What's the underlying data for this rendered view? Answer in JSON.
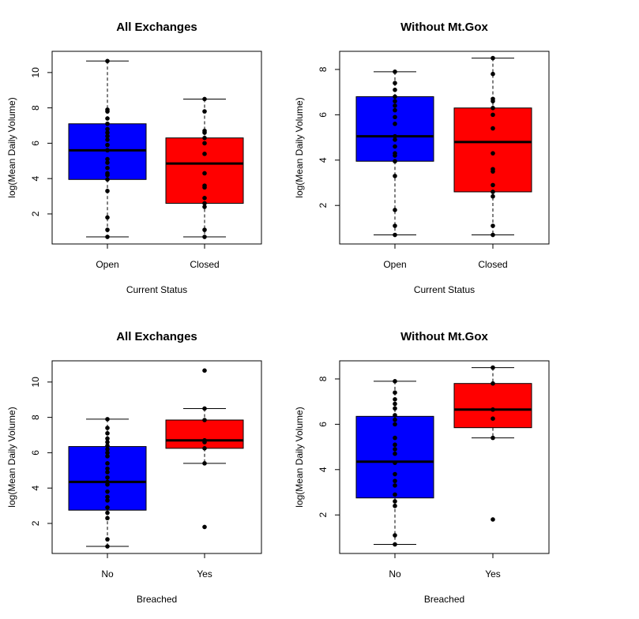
{
  "chart_data": [
    {
      "type": "box",
      "title": "All Exchanges",
      "xlabel": "Current Status",
      "ylabel": "log(Mean Daily Volume)",
      "ylim": [
        0.3,
        11.2
      ],
      "yticks": [
        2,
        4,
        6,
        8,
        10
      ],
      "categories": [
        "Open",
        "Closed"
      ],
      "boxes": [
        {
          "category": "Open",
          "color": "#0000ff",
          "whisker_low": 0.7,
          "q1": 3.95,
          "median": 5.6,
          "q3": 7.1,
          "whisker_high": 10.65,
          "points": [
            0.7,
            1.1,
            1.8,
            3.3,
            3.95,
            4.2,
            4.3,
            4.6,
            4.9,
            5.1,
            5.6,
            5.9,
            6.2,
            6.4,
            6.6,
            6.8,
            7.1,
            7.4,
            7.8,
            7.9,
            10.65
          ]
        },
        {
          "category": "Closed",
          "color": "#ff0000",
          "whisker_low": 0.7,
          "q1": 2.6,
          "median": 4.85,
          "q3": 6.3,
          "whisker_high": 8.5,
          "points": [
            0.7,
            1.1,
            2.4,
            2.6,
            2.9,
            3.5,
            3.6,
            4.3,
            5.4,
            6.0,
            6.3,
            6.6,
            6.7,
            7.8,
            8.5
          ]
        }
      ]
    },
    {
      "type": "box",
      "title": "Without Mt.Gox",
      "xlabel": "Current Status",
      "ylabel": "log(Mean Daily Volume)",
      "ylim": [
        0.3,
        8.8
      ],
      "yticks": [
        2,
        4,
        6,
        8
      ],
      "categories": [
        "Open",
        "Closed"
      ],
      "boxes": [
        {
          "category": "Open",
          "color": "#0000ff",
          "whisker_low": 0.7,
          "q1": 3.95,
          "median": 5.05,
          "q3": 6.8,
          "whisker_high": 7.9,
          "points": [
            0.7,
            1.1,
            1.8,
            3.3,
            3.95,
            4.2,
            4.3,
            4.6,
            4.9,
            5.05,
            5.6,
            5.9,
            6.2,
            6.4,
            6.6,
            6.8,
            7.1,
            7.4,
            7.9
          ]
        },
        {
          "category": "Closed",
          "color": "#ff0000",
          "whisker_low": 0.7,
          "q1": 2.6,
          "median": 4.8,
          "q3": 6.3,
          "whisker_high": 8.5,
          "points": [
            0.7,
            1.1,
            2.4,
            2.6,
            2.9,
            3.5,
            3.6,
            4.3,
            5.4,
            6.0,
            6.3,
            6.6,
            6.7,
            7.8,
            8.5
          ]
        }
      ]
    },
    {
      "type": "box",
      "title": "All Exchanges",
      "xlabel": "Breached",
      "ylabel": "log(Mean Daily Volume)",
      "ylim": [
        0.3,
        11.2
      ],
      "yticks": [
        2,
        4,
        6,
        8,
        10
      ],
      "categories": [
        "No",
        "Yes"
      ],
      "boxes": [
        {
          "category": "No",
          "color": "#0000ff",
          "whisker_low": 0.7,
          "q1": 2.75,
          "median": 4.35,
          "q3": 6.35,
          "whisker_high": 7.9,
          "points": [
            0.7,
            1.1,
            2.3,
            2.6,
            2.9,
            3.3,
            3.5,
            3.8,
            4.2,
            4.35,
            4.6,
            4.9,
            5.1,
            5.4,
            5.8,
            6.0,
            6.2,
            6.4,
            6.6,
            6.8,
            7.1,
            7.4,
            7.9
          ]
        },
        {
          "category": "Yes",
          "color": "#ff0000",
          "whisker_low": 5.4,
          "q1": 6.25,
          "median": 6.7,
          "q3": 7.85,
          "whisker_high": 8.5,
          "points": [
            1.8,
            5.4,
            6.25,
            6.6,
            6.7,
            7.85,
            8.5,
            10.65
          ]
        }
      ]
    },
    {
      "type": "box",
      "title": "Without Mt.Gox",
      "xlabel": "Breached",
      "ylabel": "log(Mean Daily Volume)",
      "ylim": [
        0.3,
        8.8
      ],
      "yticks": [
        2,
        4,
        6,
        8
      ],
      "categories": [
        "No",
        "Yes"
      ],
      "boxes": [
        {
          "category": "No",
          "color": "#0000ff",
          "whisker_low": 0.7,
          "q1": 2.75,
          "median": 4.35,
          "q3": 6.35,
          "whisker_high": 7.9,
          "points": [
            0.7,
            1.1,
            2.4,
            2.6,
            2.9,
            3.3,
            3.5,
            3.8,
            4.3,
            4.7,
            4.9,
            5.1,
            5.4,
            6.0,
            6.2,
            6.4,
            6.7,
            6.9,
            7.1,
            7.4,
            7.9
          ]
        },
        {
          "category": "Yes",
          "color": "#ff0000",
          "whisker_low": 5.4,
          "q1": 5.85,
          "median": 6.65,
          "q3": 7.8,
          "whisker_high": 8.5,
          "points": [
            1.8,
            5.4,
            6.25,
            6.65,
            7.8,
            8.5
          ]
        }
      ]
    }
  ]
}
